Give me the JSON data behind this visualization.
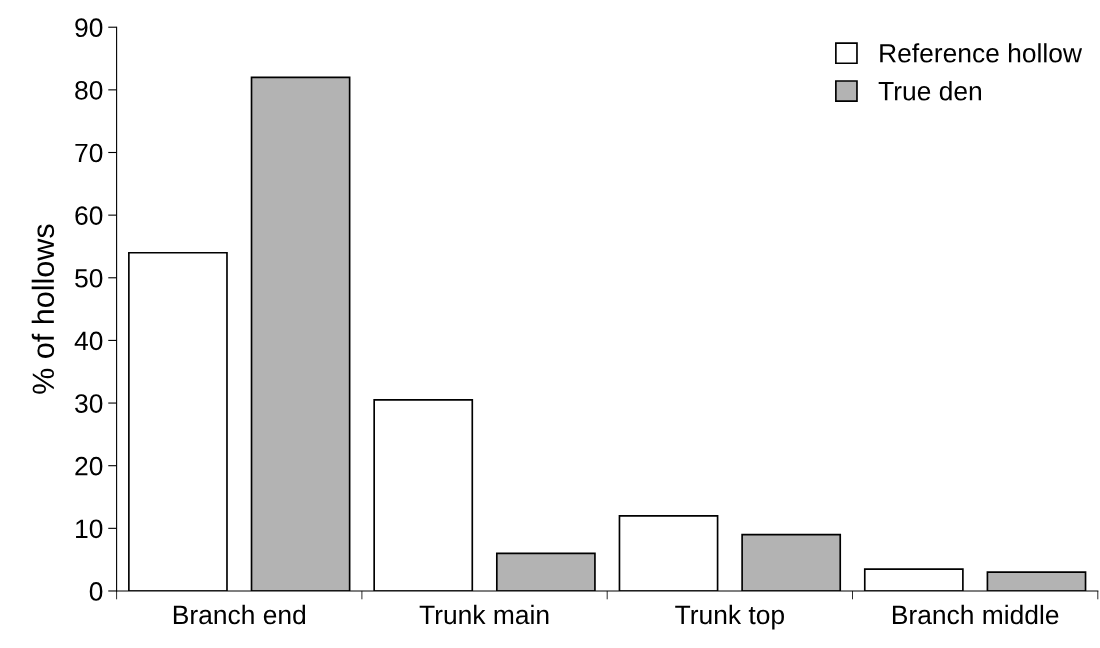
{
  "chart_data": {
    "type": "bar",
    "ylabel": "% of hollows",
    "categories": [
      "Branch end",
      "Trunk main",
      "Trunk top",
      "Branch middle"
    ],
    "series": [
      {
        "name": "Reference hollow",
        "color": "#ffffff",
        "values": [
          54,
          30.5,
          12,
          3.5
        ]
      },
      {
        "name": "True den",
        "color": "#b3b3b3",
        "values": [
          82,
          6,
          9,
          3
        ]
      }
    ],
    "ylim": [
      0,
      90
    ],
    "yticks": [
      0,
      10,
      20,
      30,
      40,
      50,
      60,
      70,
      80,
      90
    ],
    "grid": false,
    "legend": "top right"
  }
}
